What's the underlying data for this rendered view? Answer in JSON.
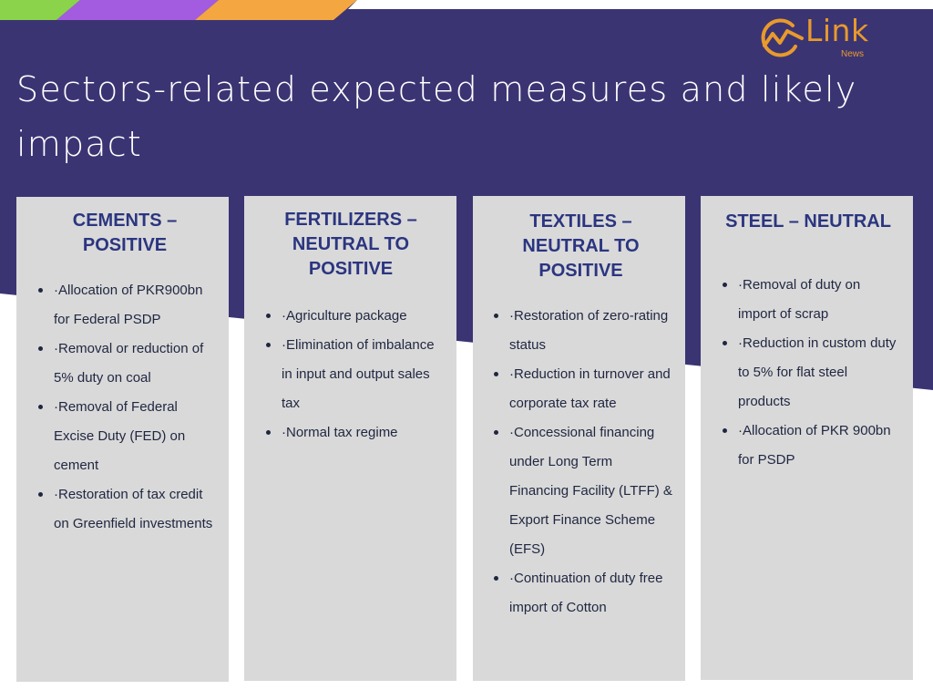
{
  "brand": {
    "name": "Link",
    "sub": "News",
    "accent_color": "#e89a2c",
    "band_color": "#3b3473"
  },
  "title": "Sectors-related expected measures and likely impact",
  "sectors": [
    {
      "heading": "CEMENTS – POSITIVE",
      "items": [
        "·Allocation of PKR900bn for Federal PSDP",
        "·Removal or reduction of 5% duty on coal",
        "·Removal of Federal Excise Duty (FED) on cement",
        "·Restoration of tax credit on Greenfield investments"
      ]
    },
    {
      "heading": "FERTILIZERS – NEUTRAL TO POSITIVE",
      "items": [
        "·Agriculture package",
        "·Elimination of imbalance in input and output sales tax",
        "·Normal tax regime"
      ]
    },
    {
      "heading": "TEXTILES – NEUTRAL TO POSITIVE",
      "items": [
        "·Restoration of zero-rating status",
        "·Reduction in turnover and corporate tax rate",
        "·Concessional financing under Long Term Financing Facility (LTFF) & Export Finance Scheme (EFS)",
        "·Continuation of duty free import of Cotton"
      ]
    },
    {
      "heading": "STEEL – NEUTRAL",
      "items": [
        "·Removal of duty on import of scrap",
        "·Reduction in custom duty to 5% for flat steel products",
        "·Allocation of PKR 900bn for PSDP"
      ]
    }
  ]
}
